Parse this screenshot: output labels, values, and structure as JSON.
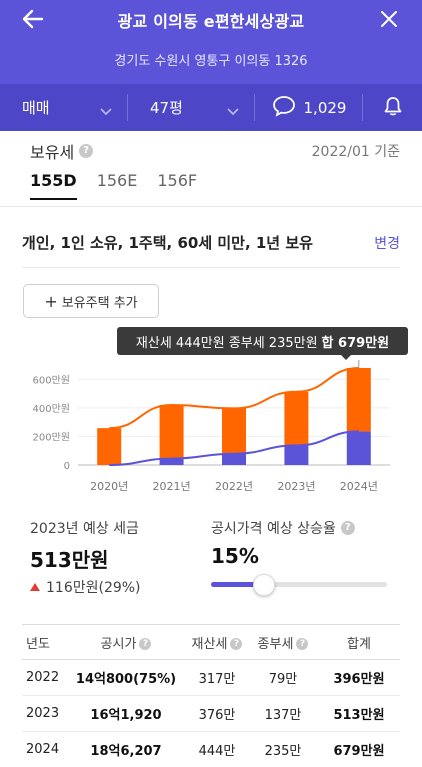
{
  "header": {
    "title": "광교 이의동 e편한세상광교",
    "address": "경기도 수원시 영통구 이의동 1326",
    "deal_type": "매매",
    "area": "47평",
    "comment_count": "1,029"
  },
  "tax": {
    "title": "보유세",
    "base_date": "2022/01 기준",
    "tabs": [
      "155D",
      "156E",
      "156F"
    ],
    "active_tab": 0,
    "condition": "개인, 1인 소유, 1주택, 60세 미만, 1년 보유",
    "edit_label": "변경",
    "add_button": "보유주택 추가"
  },
  "tooltip": {
    "text": "재산세 444만원 종부세 235만원",
    "total": "합 679만원"
  },
  "chart_data": {
    "type": "bar",
    "categories": [
      "2020년",
      "2021년",
      "2022년",
      "2023년",
      "2024년"
    ],
    "series": [
      {
        "values": [
          0,
          45,
          79,
          137,
          235
        ],
        "color": "#5b54d8"
      },
      {
        "values": [
          258,
          375,
          317,
          376,
          444
        ],
        "color": "#ff6600"
      }
    ],
    "stacked": true,
    "trend_lines": true,
    "ytick_labels": [
      "0",
      "200만원",
      "400만원",
      "600만원"
    ],
    "yticks": [
      0,
      200,
      400,
      600
    ],
    "ylim": [
      0,
      700
    ],
    "highlight_index": 4
  },
  "summary": {
    "label": "2023년 예상 세금",
    "value": "513만원",
    "change": "116만원(29%)"
  },
  "rate": {
    "label": "공시가격 예상 상승율",
    "value": "15%",
    "fraction": 0.3
  },
  "table": {
    "headers": [
      "년도",
      "공시가",
      "재산세",
      "종부세",
      "합계"
    ],
    "rows": [
      [
        "2022",
        "14억800(75%)",
        "317만",
        "79만",
        "396만원"
      ],
      [
        "2023",
        "16억1,920",
        "376만",
        "137만",
        "513만원"
      ],
      [
        "2024",
        "18억6,207",
        "444만",
        "235만",
        "679만원"
      ]
    ]
  }
}
